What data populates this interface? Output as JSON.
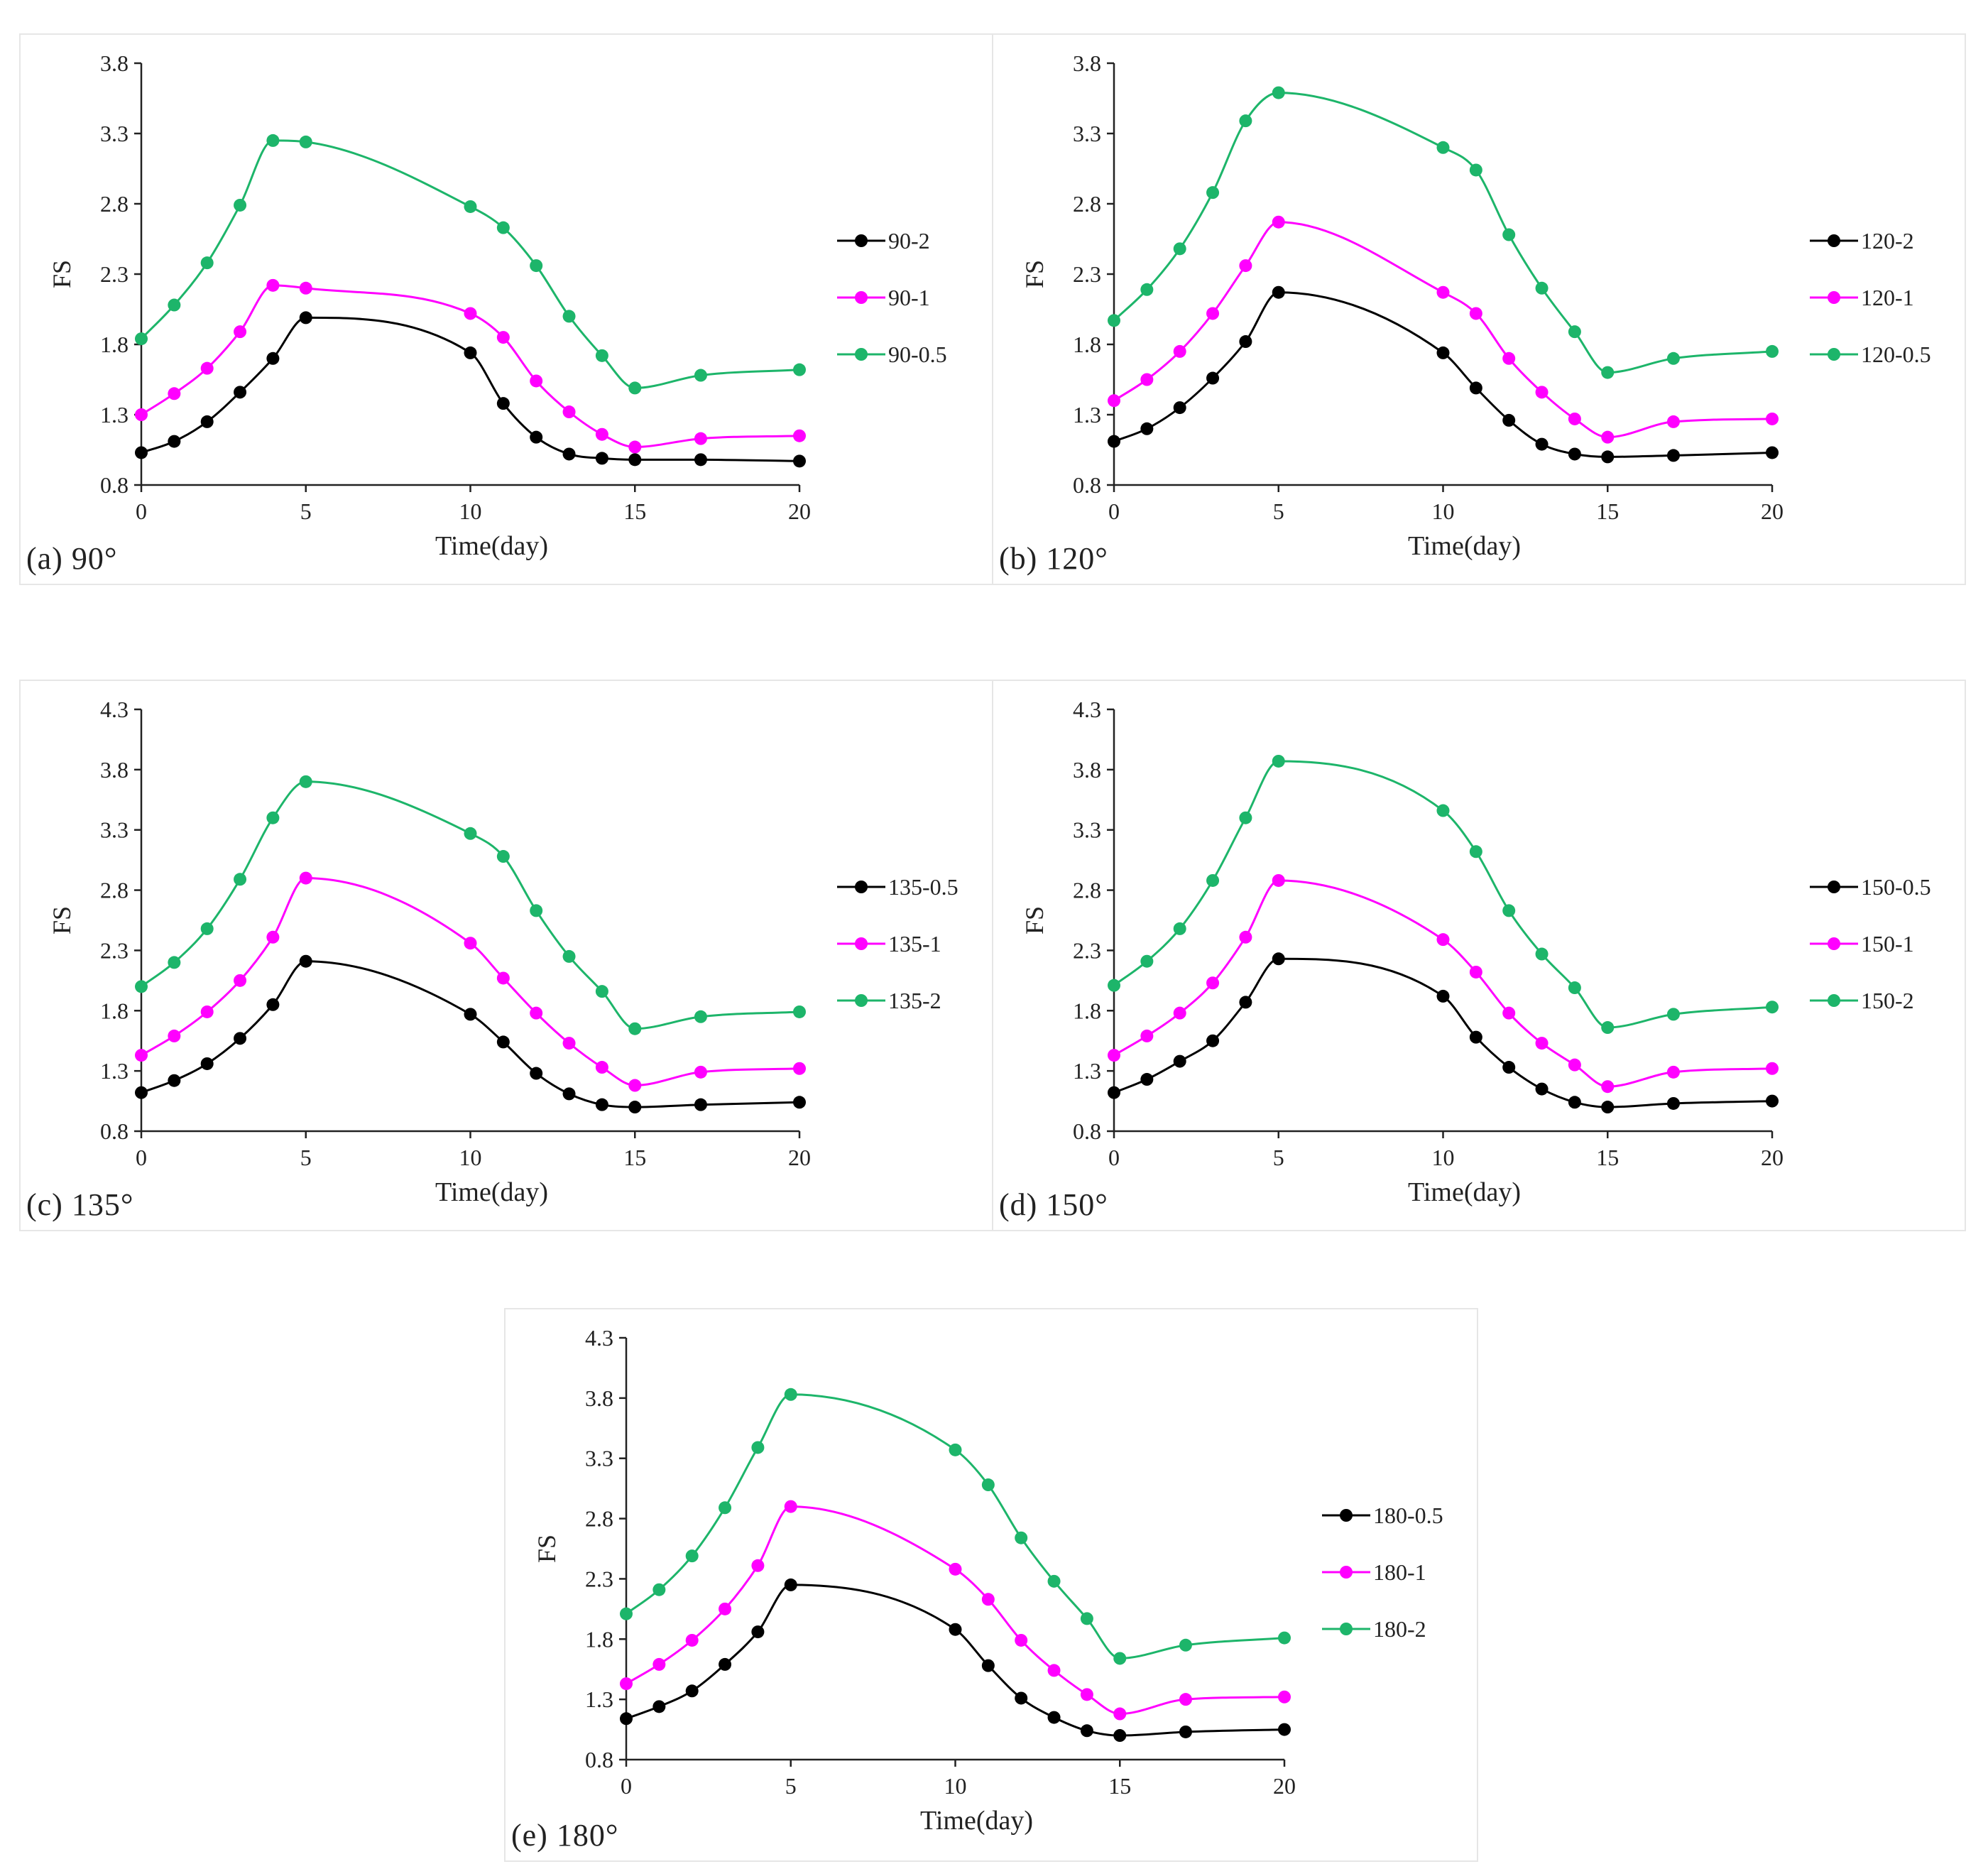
{
  "colors": {
    "black": "#000000",
    "magenta": "#ff00ff",
    "green": "#1db56a",
    "axis": "#222222"
  },
  "chart_data": [
    {
      "type": "line",
      "panel_label": "(a) 90°",
      "xlabel": "Time(day)",
      "ylabel": "FS",
      "xlim": [
        0,
        20
      ],
      "ylim": [
        0.8,
        3.8
      ],
      "xticks": [
        0,
        5,
        10,
        15,
        20
      ],
      "yticks": [
        "0.8",
        "1.3",
        "1.8",
        "2.3",
        "2.8",
        "3.3",
        "3.8"
      ],
      "legend_position": "right",
      "series": [
        {
          "name": "90-2",
          "color": "#000000",
          "x": [
            0,
            1,
            2,
            3,
            4,
            5,
            10,
            11,
            12,
            13,
            14,
            15,
            17,
            20
          ],
          "y": [
            1.03,
            1.11,
            1.25,
            1.46,
            1.7,
            1.99,
            1.74,
            1.38,
            1.14,
            1.02,
            0.99,
            0.98,
            0.98,
            0.97
          ]
        },
        {
          "name": "90-1",
          "color": "#ff00ff",
          "x": [
            0,
            1,
            2,
            3,
            4,
            5,
            10,
            11,
            12,
            13,
            14,
            15,
            17,
            20
          ],
          "y": [
            1.3,
            1.45,
            1.63,
            1.89,
            2.22,
            2.2,
            2.02,
            1.85,
            1.54,
            1.32,
            1.16,
            1.07,
            1.13,
            1.15
          ]
        },
        {
          "name": "90-0.5",
          "color": "#1db56a",
          "x": [
            0,
            1,
            2,
            3,
            4,
            5,
            10,
            11,
            12,
            13,
            14,
            15,
            17,
            20
          ],
          "y": [
            1.84,
            2.08,
            2.38,
            2.79,
            3.25,
            3.24,
            2.78,
            2.63,
            2.36,
            2.0,
            1.72,
            1.49,
            1.58,
            1.62
          ]
        }
      ]
    },
    {
      "type": "line",
      "panel_label": "(b) 120°",
      "xlabel": "Time(day)",
      "ylabel": "FS",
      "xlim": [
        0,
        20
      ],
      "ylim": [
        0.8,
        3.8
      ],
      "xticks": [
        0,
        5,
        10,
        15,
        20
      ],
      "yticks": [
        "0.8",
        "1.3",
        "1.8",
        "2.3",
        "2.8",
        "3.3",
        "3.8"
      ],
      "legend_position": "right",
      "series": [
        {
          "name": "120-2",
          "color": "#000000",
          "x": [
            0,
            1,
            2,
            3,
            4,
            5,
            10,
            11,
            12,
            13,
            14,
            15,
            17,
            20
          ],
          "y": [
            1.11,
            1.2,
            1.35,
            1.56,
            1.82,
            2.17,
            1.74,
            1.49,
            1.26,
            1.09,
            1.02,
            1.0,
            1.01,
            1.03
          ]
        },
        {
          "name": "120-1",
          "color": "#ff00ff",
          "x": [
            0,
            1,
            2,
            3,
            4,
            5,
            10,
            11,
            12,
            13,
            14,
            15,
            17,
            20
          ],
          "y": [
            1.4,
            1.55,
            1.75,
            2.02,
            2.36,
            2.67,
            2.17,
            2.02,
            1.7,
            1.46,
            1.27,
            1.14,
            1.25,
            1.27
          ]
        },
        {
          "name": "120-0.5",
          "color": "#1db56a",
          "x": [
            0,
            1,
            2,
            3,
            4,
            5,
            10,
            11,
            12,
            13,
            14,
            15,
            17,
            20
          ],
          "y": [
            1.97,
            2.19,
            2.48,
            2.88,
            3.39,
            3.59,
            3.2,
            3.04,
            2.58,
            2.2,
            1.89,
            1.6,
            1.7,
            1.75
          ]
        }
      ]
    },
    {
      "type": "line",
      "panel_label": "(c) 135°",
      "xlabel": "Time(day)",
      "ylabel": "FS",
      "xlim": [
        0,
        20
      ],
      "ylim": [
        0.8,
        4.3
      ],
      "xticks": [
        0,
        5,
        10,
        15,
        20
      ],
      "yticks": [
        "0.8",
        "1.3",
        "1.8",
        "2.3",
        "2.8",
        "3.3",
        "3.8",
        "4.3"
      ],
      "legend_position": "right",
      "series": [
        {
          "name": "135-0.5",
          "color": "#000000",
          "x": [
            0,
            1,
            2,
            3,
            4,
            5,
            10,
            11,
            12,
            13,
            14,
            15,
            17,
            20
          ],
          "y": [
            1.12,
            1.22,
            1.36,
            1.57,
            1.85,
            2.21,
            1.77,
            1.54,
            1.28,
            1.11,
            1.02,
            1.0,
            1.02,
            1.04
          ]
        },
        {
          "name": "135-1",
          "color": "#ff00ff",
          "x": [
            0,
            1,
            2,
            3,
            4,
            5,
            10,
            11,
            12,
            13,
            14,
            15,
            17,
            20
          ],
          "y": [
            1.43,
            1.59,
            1.79,
            2.05,
            2.41,
            2.9,
            2.36,
            2.07,
            1.78,
            1.53,
            1.33,
            1.18,
            1.29,
            1.32
          ]
        },
        {
          "name": "135-2",
          "color": "#1db56a",
          "x": [
            0,
            1,
            2,
            3,
            4,
            5,
            10,
            11,
            12,
            13,
            14,
            15,
            17,
            20
          ],
          "y": [
            2.0,
            2.2,
            2.48,
            2.89,
            3.4,
            3.7,
            3.27,
            3.08,
            2.63,
            2.25,
            1.96,
            1.65,
            1.75,
            1.79
          ]
        }
      ]
    },
    {
      "type": "line",
      "panel_label": "(d) 150°",
      "xlabel": "Time(day)",
      "ylabel": "FS",
      "xlim": [
        0,
        20
      ],
      "ylim": [
        0.8,
        4.3
      ],
      "xticks": [
        0,
        5,
        10,
        15,
        20
      ],
      "yticks": [
        "0.8",
        "1.3",
        "1.8",
        "2.3",
        "2.8",
        "3.3",
        "3.8",
        "4.3"
      ],
      "legend_position": "right",
      "series": [
        {
          "name": "150-0.5",
          "color": "#000000",
          "x": [
            0,
            1,
            2,
            3,
            4,
            5,
            10,
            11,
            12,
            13,
            14,
            15,
            17,
            20
          ],
          "y": [
            1.12,
            1.23,
            1.38,
            1.55,
            1.87,
            2.23,
            1.92,
            1.58,
            1.33,
            1.15,
            1.04,
            1.0,
            1.03,
            1.05
          ]
        },
        {
          "name": "150-1",
          "color": "#ff00ff",
          "x": [
            0,
            1,
            2,
            3,
            4,
            5,
            10,
            11,
            12,
            13,
            14,
            15,
            17,
            20
          ],
          "y": [
            1.43,
            1.59,
            1.78,
            2.03,
            2.41,
            2.88,
            2.39,
            2.12,
            1.78,
            1.53,
            1.35,
            1.17,
            1.29,
            1.32
          ]
        },
        {
          "name": "150-2",
          "color": "#1db56a",
          "x": [
            0,
            1,
            2,
            3,
            4,
            5,
            10,
            11,
            12,
            13,
            14,
            15,
            17,
            20
          ],
          "y": [
            2.01,
            2.21,
            2.48,
            2.88,
            3.4,
            3.87,
            3.46,
            3.12,
            2.63,
            2.27,
            1.99,
            1.66,
            1.77,
            1.83
          ]
        }
      ]
    },
    {
      "type": "line",
      "panel_label": "(e) 180°",
      "xlabel": "Time(day)",
      "ylabel": "FS",
      "xlim": [
        0,
        20
      ],
      "ylim": [
        0.8,
        4.3
      ],
      "xticks": [
        0,
        5,
        10,
        15,
        20
      ],
      "yticks": [
        "0.8",
        "1.3",
        "1.8",
        "2.3",
        "2.8",
        "3.3",
        "3.8",
        "4.3"
      ],
      "legend_position": "right",
      "series": [
        {
          "name": "180-0.5",
          "color": "#000000",
          "x": [
            0,
            1,
            2,
            3,
            4,
            5,
            10,
            11,
            12,
            13,
            14,
            15,
            17,
            20
          ],
          "y": [
            1.14,
            1.24,
            1.37,
            1.59,
            1.86,
            2.25,
            1.88,
            1.58,
            1.31,
            1.15,
            1.04,
            1.0,
            1.03,
            1.05
          ]
        },
        {
          "name": "180-1",
          "color": "#ff00ff",
          "x": [
            0,
            1,
            2,
            3,
            4,
            5,
            10,
            11,
            12,
            13,
            14,
            15,
            17,
            20
          ],
          "y": [
            1.43,
            1.59,
            1.79,
            2.05,
            2.41,
            2.9,
            2.38,
            2.13,
            1.79,
            1.54,
            1.34,
            1.18,
            1.3,
            1.32
          ]
        },
        {
          "name": "180-2",
          "color": "#1db56a",
          "x": [
            0,
            1,
            2,
            3,
            4,
            5,
            10,
            11,
            12,
            13,
            14,
            15,
            17,
            20
          ],
          "y": [
            2.01,
            2.21,
            2.49,
            2.89,
            3.39,
            3.83,
            3.37,
            3.08,
            2.64,
            2.28,
            1.97,
            1.64,
            1.75,
            1.81
          ]
        }
      ]
    }
  ]
}
